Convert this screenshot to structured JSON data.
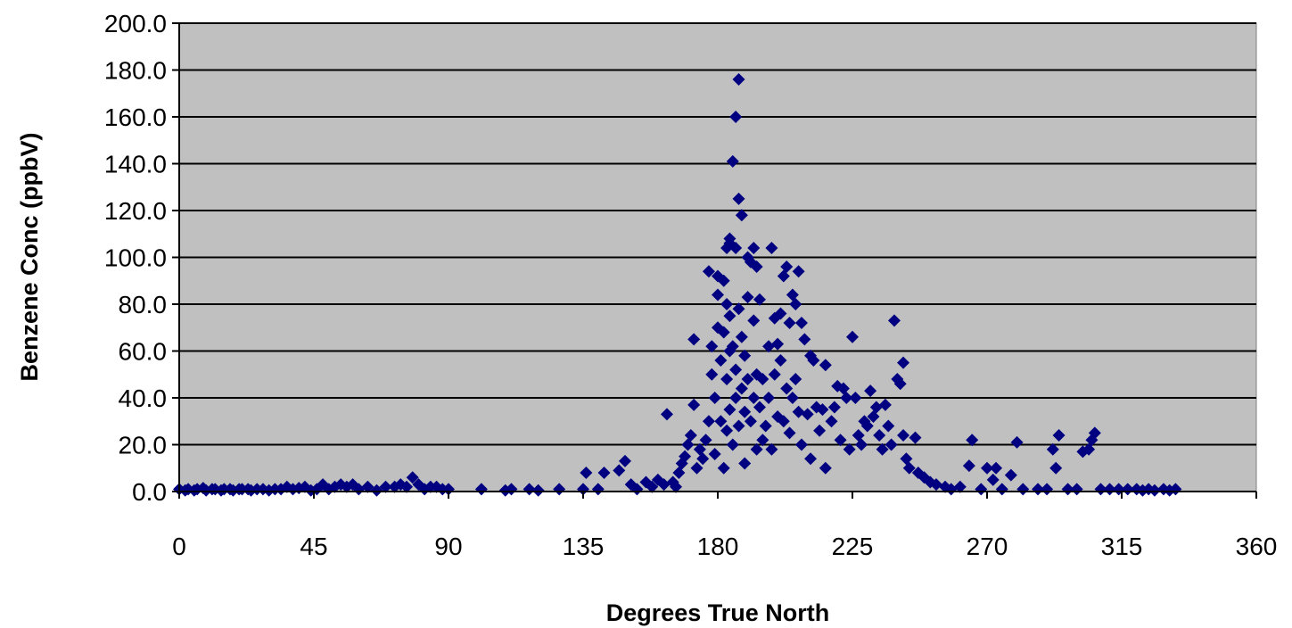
{
  "chart_data": {
    "type": "scatter",
    "xlabel": "Degrees True North",
    "ylabel": "Benzene Conc (ppbV)",
    "xlim": [
      0,
      360
    ],
    "ylim": [
      0,
      200
    ],
    "x_ticks": [
      0,
      45,
      90,
      135,
      180,
      225,
      270,
      315,
      360
    ],
    "x_tick_labels": [
      "0",
      "45",
      "90",
      "135",
      "180",
      "225",
      "270",
      "315",
      "360"
    ],
    "y_ticks": [
      0,
      20,
      40,
      60,
      80,
      100,
      120,
      140,
      160,
      180,
      200
    ],
    "y_tick_labels": [
      "0.0",
      "20.0",
      "40.0",
      "60.0",
      "80.0",
      "100.0",
      "120.0",
      "140.0",
      "160.0",
      "180.0",
      "200.0"
    ],
    "grid": "horizontal",
    "plot_background": "#c0c0c0",
    "marker_color": "#000080",
    "marker": "diamond",
    "series": [
      {
        "points": [
          [
            0,
            1
          ],
          [
            2,
            0.5
          ],
          [
            3,
            1
          ],
          [
            5,
            0.5
          ],
          [
            6,
            1
          ],
          [
            8,
            1.5
          ],
          [
            9,
            0.5
          ],
          [
            11,
            1
          ],
          [
            12,
            1
          ],
          [
            14,
            0.5
          ],
          [
            15,
            1
          ],
          [
            17,
            1
          ],
          [
            18,
            0.5
          ],
          [
            20,
            1
          ],
          [
            21,
            1
          ],
          [
            23,
            1
          ],
          [
            24,
            0.5
          ],
          [
            26,
            1
          ],
          [
            28,
            1
          ],
          [
            30,
            0.5
          ],
          [
            32,
            1
          ],
          [
            34,
            1
          ],
          [
            36,
            2
          ],
          [
            38,
            1
          ],
          [
            40,
            1.5
          ],
          [
            42,
            2
          ],
          [
            44,
            0.5
          ],
          [
            46,
            1
          ],
          [
            48,
            3
          ],
          [
            50,
            1
          ],
          [
            52,
            2
          ],
          [
            54,
            3
          ],
          [
            56,
            2
          ],
          [
            58,
            3
          ],
          [
            60,
            1
          ],
          [
            63,
            2
          ],
          [
            66,
            0.5
          ],
          [
            69,
            2
          ],
          [
            72,
            2
          ],
          [
            74,
            3
          ],
          [
            76,
            2
          ],
          [
            78,
            6
          ],
          [
            80,
            3
          ],
          [
            82,
            1
          ],
          [
            84,
            2
          ],
          [
            86,
            2
          ],
          [
            88,
            1
          ],
          [
            90,
            1
          ],
          [
            101,
            1
          ],
          [
            109,
            0.5
          ],
          [
            111,
            1
          ],
          [
            117,
            1
          ],
          [
            120,
            0.5
          ],
          [
            127,
            1
          ],
          [
            135,
            1
          ],
          [
            136,
            8
          ],
          [
            140,
            1
          ],
          [
            142,
            8
          ],
          [
            147,
            9
          ],
          [
            149,
            13
          ],
          [
            151,
            3
          ],
          [
            153,
            1
          ],
          [
            156,
            4
          ],
          [
            158,
            2
          ],
          [
            160,
            5
          ],
          [
            162,
            3
          ],
          [
            163,
            33
          ],
          [
            165,
            4
          ],
          [
            166,
            2
          ],
          [
            167,
            8
          ],
          [
            168,
            12
          ],
          [
            169,
            15
          ],
          [
            170,
            20
          ],
          [
            171,
            24
          ],
          [
            172,
            65
          ],
          [
            172,
            37
          ],
          [
            173,
            10
          ],
          [
            174,
            18
          ],
          [
            175,
            14
          ],
          [
            176,
            22
          ],
          [
            177,
            94
          ],
          [
            177,
            30
          ],
          [
            178,
            50
          ],
          [
            178,
            62
          ],
          [
            179,
            40
          ],
          [
            179,
            16
          ],
          [
            180,
            92
          ],
          [
            180,
            84
          ],
          [
            180,
            70
          ],
          [
            181,
            56
          ],
          [
            181,
            30
          ],
          [
            182,
            90
          ],
          [
            182,
            68
          ],
          [
            182,
            10
          ],
          [
            183,
            104
          ],
          [
            183,
            80
          ],
          [
            183,
            48
          ],
          [
            183,
            26
          ],
          [
            184,
            108
          ],
          [
            184,
            106
          ],
          [
            184,
            75
          ],
          [
            184,
            60
          ],
          [
            184,
            35
          ],
          [
            185,
            141
          ],
          [
            185,
            62
          ],
          [
            185,
            20
          ],
          [
            186,
            160
          ],
          [
            186,
            104
          ],
          [
            186,
            52
          ],
          [
            186,
            40
          ],
          [
            187,
            176
          ],
          [
            187,
            125
          ],
          [
            187,
            78
          ],
          [
            187,
            28
          ],
          [
            188,
            118
          ],
          [
            188,
            66
          ],
          [
            188,
            44
          ],
          [
            189,
            58
          ],
          [
            189,
            34
          ],
          [
            189,
            12
          ],
          [
            190,
            100
          ],
          [
            190,
            83
          ],
          [
            190,
            48
          ],
          [
            191,
            98
          ],
          [
            191,
            30
          ],
          [
            192,
            104
          ],
          [
            192,
            73
          ],
          [
            192,
            40
          ],
          [
            193,
            96
          ],
          [
            193,
            50
          ],
          [
            193,
            18
          ],
          [
            194,
            82
          ],
          [
            194,
            36
          ],
          [
            195,
            48
          ],
          [
            195,
            22
          ],
          [
            196,
            28
          ],
          [
            197,
            62
          ],
          [
            197,
            40
          ],
          [
            198,
            104
          ],
          [
            198,
            18
          ],
          [
            199,
            74
          ],
          [
            199,
            50
          ],
          [
            200,
            63
          ],
          [
            200,
            32
          ],
          [
            201,
            76
          ],
          [
            201,
            56
          ],
          [
            202,
            92
          ],
          [
            202,
            30
          ],
          [
            203,
            96
          ],
          [
            203,
            44
          ],
          [
            204,
            72
          ],
          [
            204,
            25
          ],
          [
            205,
            84
          ],
          [
            205,
            40
          ],
          [
            206,
            80
          ],
          [
            206,
            48
          ],
          [
            207,
            94
          ],
          [
            207,
            34
          ],
          [
            208,
            72
          ],
          [
            208,
            20
          ],
          [
            209,
            65
          ],
          [
            210,
            33
          ],
          [
            211,
            58
          ],
          [
            211,
            14
          ],
          [
            212,
            56
          ],
          [
            213,
            36
          ],
          [
            214,
            26
          ],
          [
            215,
            35
          ],
          [
            216,
            54
          ],
          [
            216,
            10
          ],
          [
            218,
            30
          ],
          [
            219,
            36
          ],
          [
            220,
            45
          ],
          [
            221,
            22
          ],
          [
            222,
            44
          ],
          [
            223,
            40
          ],
          [
            224,
            18
          ],
          [
            225,
            66
          ],
          [
            226,
            40
          ],
          [
            227,
            24
          ],
          [
            228,
            20
          ],
          [
            229,
            30
          ],
          [
            230,
            28
          ],
          [
            231,
            43
          ],
          [
            232,
            32
          ],
          [
            233,
            36
          ],
          [
            234,
            24
          ],
          [
            235,
            18
          ],
          [
            236,
            37
          ],
          [
            237,
            28
          ],
          [
            238,
            20
          ],
          [
            239,
            73
          ],
          [
            240,
            48
          ],
          [
            241,
            46
          ],
          [
            242,
            55
          ],
          [
            242,
            24
          ],
          [
            243,
            14
          ],
          [
            244,
            10
          ],
          [
            246,
            23
          ],
          [
            247,
            8
          ],
          [
            249,
            6
          ],
          [
            251,
            4
          ],
          [
            253,
            3
          ],
          [
            256,
            2
          ],
          [
            258,
            1
          ],
          [
            261,
            2
          ],
          [
            264,
            11
          ],
          [
            265,
            22
          ],
          [
            268,
            1
          ],
          [
            270,
            10
          ],
          [
            272,
            5
          ],
          [
            273,
            10
          ],
          [
            275,
            1
          ],
          [
            278,
            7
          ],
          [
            280,
            21
          ],
          [
            282,
            1
          ],
          [
            287,
            1
          ],
          [
            290,
            1
          ],
          [
            292,
            18
          ],
          [
            293,
            10
          ],
          [
            294,
            24
          ],
          [
            297,
            1
          ],
          [
            300,
            1
          ],
          [
            302,
            17
          ],
          [
            304,
            18
          ],
          [
            305,
            22
          ],
          [
            306,
            25
          ],
          [
            308,
            1
          ],
          [
            311,
            1
          ],
          [
            314,
            1
          ],
          [
            317,
            1
          ],
          [
            320,
            1
          ],
          [
            322,
            0.5
          ],
          [
            324,
            1
          ],
          [
            326,
            0.5
          ],
          [
            329,
            1
          ],
          [
            331,
            0.5
          ],
          [
            333,
            1
          ]
        ]
      }
    ]
  }
}
